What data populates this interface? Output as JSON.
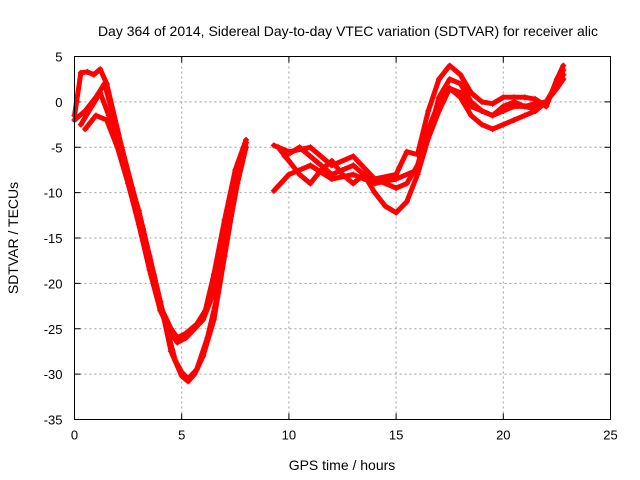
{
  "chart_data": {
    "type": "scatter",
    "title": "Day 364 of 2014, Sidereal Day-to-day VTEC variation (SDTVAR) for receiver alic",
    "xlabel": "GPS time / hours",
    "ylabel": "SDTVAR / TECUs",
    "xlim": [
      0,
      25
    ],
    "ylim": [
      -35,
      5
    ],
    "xticks": [
      "0",
      "5",
      "10",
      "15",
      "20",
      "25"
    ],
    "yticks": [
      "5",
      "0",
      "-5",
      "-10",
      "-15",
      "-20",
      "-25",
      "-30",
      "-35"
    ],
    "grid": true,
    "marker": "plus",
    "color": "#ff0000",
    "series": [
      {
        "x": [
          0,
          0.3,
          0.6,
          0.9,
          1.2,
          1.5,
          2.0,
          2.5,
          3.0,
          3.5,
          4.0,
          4.5,
          5.0,
          5.3,
          5.6,
          6.0,
          6.5,
          7.0,
          7.5,
          8.0
        ],
        "y": [
          -1.5,
          3.2,
          3.3,
          3.0,
          3.6,
          2.0,
          -3.0,
          -8.0,
          -12.0,
          -17.0,
          -22.0,
          -27.5,
          -30.2,
          -30.8,
          -30.0,
          -28.0,
          -24.0,
          -17.0,
          -10.0,
          -4.5
        ]
      },
      {
        "x": [
          0,
          0.5,
          1.0,
          1.4,
          1.8,
          2.2,
          2.7,
          3.2,
          3.7,
          4.2,
          4.7,
          5.0,
          5.3,
          5.7,
          6.2,
          6.7,
          7.2,
          7.6,
          8.0
        ],
        "y": [
          -2.0,
          -1.0,
          0.5,
          2.0,
          -1.5,
          -5.0,
          -9.5,
          -14.0,
          -19.0,
          -24.0,
          -28.5,
          -29.8,
          -30.5,
          -29.5,
          -26.0,
          -21.0,
          -14.0,
          -9.0,
          -5.0
        ]
      },
      {
        "x": [
          0.3,
          0.8,
          1.2,
          1.6,
          2.0,
          2.5,
          3.0,
          3.5,
          4.0,
          4.5,
          4.8,
          5.2,
          5.7,
          6.1,
          6.5,
          7.0,
          7.5,
          8.0
        ],
        "y": [
          -2.5,
          -0.5,
          1.0,
          -1.5,
          -4.5,
          -8.5,
          -13.0,
          -18.0,
          -22.5,
          -25.0,
          -26.0,
          -25.5,
          -24.5,
          -23.0,
          -19.0,
          -13.0,
          -7.5,
          -4.2
        ]
      },
      {
        "x": [
          0.5,
          1.0,
          1.5,
          2.0,
          2.5,
          3.0,
          3.5,
          4.0,
          4.5,
          4.8,
          5.2,
          5.6,
          6.0,
          6.5,
          7.0,
          7.5
        ],
        "y": [
          -3.0,
          -1.5,
          -2.0,
          -5.0,
          -9.0,
          -13.5,
          -18.5,
          -23.0,
          -25.5,
          -26.5,
          -26.0,
          -25.0,
          -24.0,
          -21.0,
          -15.0,
          -9.0
        ]
      },
      {
        "x": [
          9.3,
          10.0,
          11.0,
          12.0,
          13.0,
          14.0,
          15.0,
          15.5,
          16.0,
          16.5,
          17.0,
          17.5,
          18.0,
          18.5,
          19.0,
          19.5,
          20.0,
          20.5,
          21.0,
          21.5,
          22.0,
          22.5,
          22.8
        ],
        "y": [
          -4.8,
          -5.5,
          -5.0,
          -7.0,
          -6.0,
          -8.5,
          -8.0,
          -5.5,
          -5.8,
          -1.0,
          2.5,
          4.0,
          3.0,
          1.0,
          0.0,
          -0.2,
          0.5,
          0.5,
          0.5,
          0.3,
          -0.5,
          2.5,
          4.0
        ]
      },
      {
        "x": [
          9.3,
          10.0,
          11.0,
          12.0,
          13.0,
          14.0,
          15.0,
          16.0,
          16.5,
          17.0,
          17.5,
          18.0,
          18.5,
          19.0,
          19.5,
          20.0,
          20.5,
          21.0,
          21.5,
          22.0,
          22.5,
          22.8
        ],
        "y": [
          -9.8,
          -8.0,
          -7.0,
          -8.5,
          -8.0,
          -9.0,
          -8.5,
          -7.5,
          -4.0,
          0.5,
          2.5,
          2.0,
          0.0,
          -1.0,
          -1.5,
          -0.5,
          0.0,
          -0.5,
          -0.8,
          0.0,
          2.0,
          3.0
        ]
      },
      {
        "x": [
          9.5,
          10.0,
          10.5,
          11.0,
          11.5,
          12.0,
          12.5,
          13.0,
          13.5,
          14.0,
          14.5,
          15.0,
          15.5,
          16.0,
          16.5,
          17.0,
          17.5,
          18.0,
          18.5,
          19.0,
          19.5,
          20.0,
          20.5,
          21.0,
          21.5,
          22.0,
          22.5,
          22.8
        ],
        "y": [
          -5.0,
          -6.5,
          -8.0,
          -9.0,
          -7.5,
          -6.5,
          -8.0,
          -9.0,
          -8.0,
          -10.0,
          -11.5,
          -12.2,
          -11.0,
          -8.0,
          -4.0,
          -1.0,
          1.5,
          0.5,
          -1.5,
          -2.5,
          -3.0,
          -2.5,
          -2.0,
          -1.5,
          -1.0,
          0.0,
          1.5,
          2.5
        ]
      },
      {
        "x": [
          9.8,
          10.5,
          11.0,
          11.5,
          12.0,
          12.5,
          13.0,
          13.5,
          14.0,
          14.5,
          15.0,
          15.5,
          16.0,
          16.5,
          17.0,
          17.5,
          18.0,
          18.5,
          19.0,
          19.5,
          20.0,
          20.5,
          21.0,
          21.5,
          22.0,
          22.5,
          22.8
        ],
        "y": [
          -6.0,
          -5.0,
          -6.0,
          -7.0,
          -8.0,
          -7.5,
          -7.0,
          -8.0,
          -8.5,
          -9.0,
          -9.5,
          -9.0,
          -7.0,
          -3.0,
          0.0,
          1.5,
          1.0,
          -0.5,
          -1.0,
          -1.5,
          -1.0,
          -0.5,
          -0.5,
          -0.2,
          0.0,
          1.8,
          3.5
        ]
      }
    ]
  }
}
